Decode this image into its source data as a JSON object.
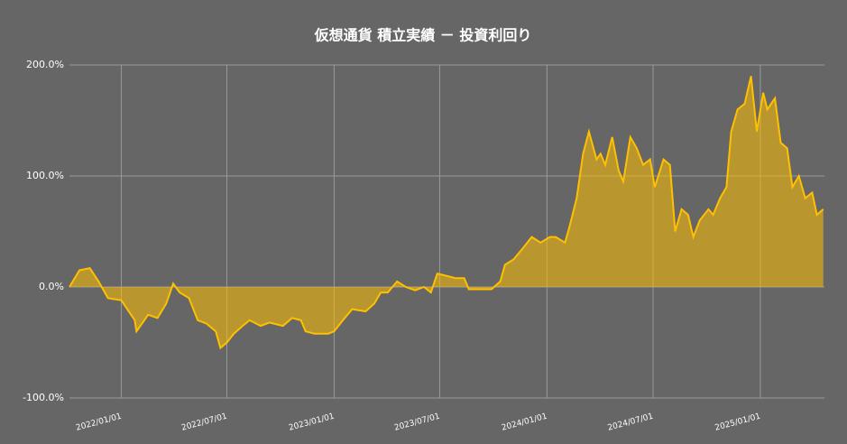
{
  "chart_data": {
    "type": "area",
    "title": "仮想通貨 積立実績 － 投資利回り",
    "x": [
      "2021-10-04",
      "2021-10-21",
      "2021-11-08",
      "2021-11-23",
      "2021-12-09",
      "2022-01-01",
      "2022-01-24",
      "2022-01-27",
      "2022-02-16",
      "2022-03-04",
      "2022-03-19",
      "2022-03-31",
      "2022-04-11",
      "2022-04-27",
      "2022-05-12",
      "2022-05-27",
      "2022-06-12",
      "2022-06-20",
      "2022-07-01",
      "2022-07-13",
      "2022-07-28",
      "2022-08-09",
      "2022-08-28",
      "2022-09-12",
      "2022-10-05",
      "2022-10-21",
      "2022-11-05",
      "2022-11-13",
      "2022-11-28",
      "2022-12-22",
      "2023-01-01",
      "2023-01-16",
      "2023-02-01",
      "2023-02-24",
      "2023-03-11",
      "2023-03-22",
      "2023-04-03",
      "2023-04-19",
      "2023-05-04",
      "2023-05-20",
      "2023-06-04",
      "2023-06-16",
      "2023-06-27",
      "2023-07-13",
      "2023-07-28",
      "2023-08-12",
      "2023-08-20",
      "2023-09-05",
      "2023-09-28",
      "2023-10-13",
      "2023-10-21",
      "2023-11-05",
      "2023-11-21",
      "2023-12-06",
      "2023-12-21",
      "2024-01-06",
      "2024-01-16",
      "2024-02-01",
      "2024-02-09",
      "2024-02-21",
      "2024-03-03",
      "2024-03-13",
      "2024-03-26",
      "2024-04-02",
      "2024-04-10",
      "2024-04-22",
      "2024-05-03",
      "2024-05-11",
      "2024-05-23",
      "2024-06-03",
      "2024-06-14",
      "2024-06-26",
      "2024-07-04",
      "2024-07-19",
      "2024-07-30",
      "2024-08-08",
      "2024-08-19",
      "2024-08-30",
      "2024-09-08",
      "2024-09-19",
      "2024-10-04",
      "2024-10-12",
      "2024-10-24",
      "2024-11-04",
      "2024-11-12",
      "2024-11-23",
      "2024-12-05",
      "2024-12-16",
      "2024-12-26",
      "2025-01-06",
      "2025-01-13",
      "2025-01-26",
      "2025-02-05",
      "2025-02-16",
      "2025-02-25",
      "2025-03-08",
      "2025-03-19",
      "2025-03-31",
      "2025-04-08",
      "2025-04-19"
    ],
    "series": [
      {
        "color": "#ffc000",
        "values": [
          0,
          15,
          17,
          5,
          -10,
          -12,
          -30,
          -40,
          -25,
          -28,
          -15,
          3,
          -5,
          -10,
          -30,
          -33,
          -40,
          -55,
          -50,
          -42,
          -35,
          -30,
          -35,
          -32,
          -35,
          -28,
          -30,
          -40,
          -42,
          -42,
          -40,
          -30,
          -20,
          -22,
          -15,
          -5,
          -5,
          5,
          0,
          -3,
          0,
          -5,
          12,
          10,
          8,
          8,
          -2,
          -2,
          -2,
          5,
          20,
          25,
          35,
          45,
          40,
          45,
          45,
          40,
          55,
          80,
          120,
          140,
          115,
          120,
          110,
          135,
          105,
          95,
          135,
          125,
          110,
          115,
          90,
          115,
          110,
          50,
          70,
          65,
          45,
          60,
          70,
          65,
          80,
          90,
          140,
          160,
          165,
          190,
          140,
          175,
          160,
          170,
          130,
          125,
          90,
          100,
          80,
          85,
          65,
          70
        ]
      }
    ],
    "xlim": [
      "2021-10-04",
      "2025-04-21"
    ],
    "xticks": [
      {
        "value": "2022-01-01",
        "label": "2022/01/01"
      },
      {
        "value": "2022-07-01",
        "label": "2022/07/01"
      },
      {
        "value": "2023-01-01",
        "label": "2023/01/01"
      },
      {
        "value": "2023-07-01",
        "label": "2023/07/01"
      },
      {
        "value": "2024-01-01",
        "label": "2024/01/01"
      },
      {
        "value": "2024-07-01",
        "label": "2024/07/01"
      },
      {
        "value": "2025-01-01",
        "label": "2025/01/01"
      }
    ],
    "ylim": [
      -100,
      200
    ],
    "yticks": [
      {
        "value": -100,
        "label": "-100.0%"
      },
      {
        "value": 0,
        "label": "0.0%"
      },
      {
        "value": 100,
        "label": "100.0%"
      },
      {
        "value": 200,
        "label": "200.0%"
      }
    ],
    "grid": true
  }
}
